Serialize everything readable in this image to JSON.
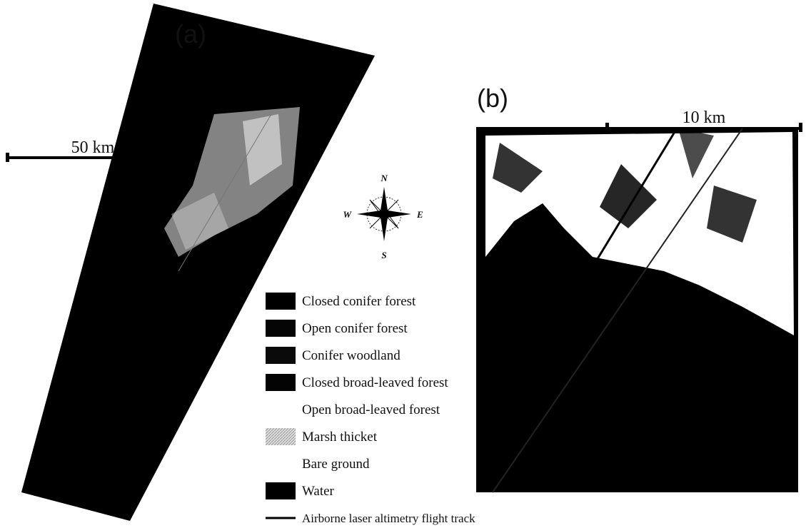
{
  "panel_a": {
    "label": "(a)",
    "scale_bar": "50 km"
  },
  "panel_b": {
    "label": "(b)",
    "scale_bar": "10 km"
  },
  "compass": {
    "north": "N",
    "east": "E",
    "south": "S",
    "west": "W"
  },
  "legend": {
    "items": [
      {
        "label": "Closed conifer forest",
        "color": "#000000"
      },
      {
        "label": "Open conifer forest",
        "color": "#050505"
      },
      {
        "label": "Conifer woodland",
        "color": "#0a0a0a"
      },
      {
        "label": "Closed broad-leaved forest",
        "color": "#030303"
      },
      {
        "label": "Open broad-leaved forest",
        "color": "#ffffff"
      },
      {
        "label": "Marsh thicket",
        "color": "#c8c8c8"
      },
      {
        "label": "Bare ground",
        "color": "#ffffff"
      },
      {
        "label": "Water",
        "color": "#000000"
      }
    ],
    "track": "Airborne laser altimetry flight track"
  }
}
